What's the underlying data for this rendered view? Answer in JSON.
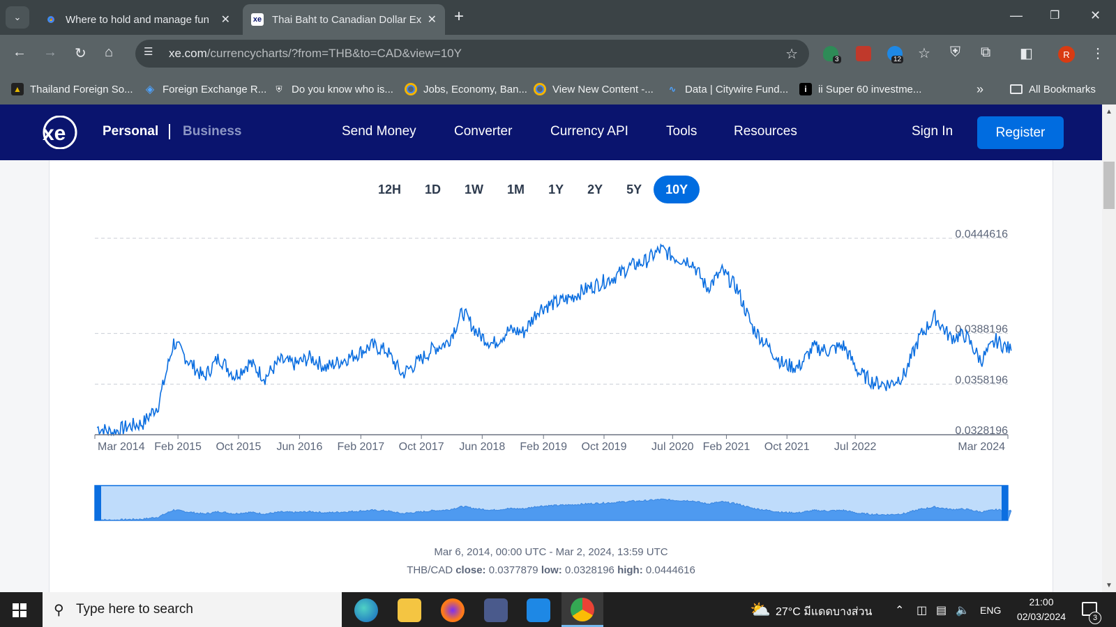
{
  "browser": {
    "tab_menu_icon": "chevron-down-icon",
    "tabs": [
      {
        "title": "Where to hold and manage fun",
        "favicon": "chrome-color-icon",
        "active": false
      },
      {
        "title": "Thai Baht to Canadian Dollar Ex",
        "favicon": "xe-icon",
        "active": true
      }
    ],
    "url_host": "xe.com",
    "url_path": "/currencycharts/?from=THB&to=CAD&view=10Y",
    "extension_badges": [
      "3",
      "12"
    ],
    "profile_initial": "R",
    "bookmarks": [
      {
        "label": "Thailand Foreign So...",
        "icon": "site-icon"
      },
      {
        "label": "Foreign Exchange R...",
        "icon": "diamond-icon"
      },
      {
        "label": "Do you know who is...",
        "icon": "shield-icon"
      },
      {
        "label": "Jobs, Economy, Ban...",
        "icon": "ring-icon"
      },
      {
        "label": "View New Content -...",
        "icon": "ring-icon"
      },
      {
        "label": "Data | Citywire Fund...",
        "icon": "chart-icon"
      },
      {
        "label": "ii Super 60 investme...",
        "icon": "ii-icon"
      }
    ],
    "all_bookmarks_label": "All Bookmarks"
  },
  "xe_nav": {
    "logo_text": "xe",
    "personal": "Personal",
    "business": "Business",
    "links": [
      "Send Money",
      "Converter",
      "Currency API",
      "Tools",
      "Resources"
    ],
    "sign_in": "Sign In",
    "register": "Register"
  },
  "range_tabs": [
    "12H",
    "1D",
    "1W",
    "1M",
    "1Y",
    "2Y",
    "5Y",
    "10Y"
  ],
  "active_range": "10Y",
  "chart_data": {
    "type": "line",
    "title": "",
    "xlabel": "",
    "ylabel": "",
    "y_ticks": [
      "0.0444616",
      "0.0388196",
      "0.0358196",
      "0.0328196"
    ],
    "x_ticks": [
      "Mar 2014",
      "Feb 2015",
      "Oct 2015",
      "Jun 2016",
      "Feb 2017",
      "Oct 2017",
      "Jun 2018",
      "Feb 2019",
      "Oct 2019",
      "Jul 2020",
      "Feb 2021",
      "Oct 2021",
      "Jul 2022",
      "Mar 2024"
    ],
    "ylim": [
      0.0328196,
      0.0444616
    ],
    "grid": "dashed horizontal at y ticks",
    "color": "#0b6ee0",
    "series": [
      {
        "x": [
          "2014-03",
          "2014-05",
          "2014-07",
          "2014-09",
          "2014-11",
          "2015-01",
          "2015-03",
          "2015-05",
          "2015-07",
          "2015-09",
          "2015-11",
          "2016-01",
          "2016-03",
          "2016-05",
          "2016-07",
          "2016-09",
          "2016-11",
          "2017-01",
          "2017-03",
          "2017-05",
          "2017-07",
          "2017-09",
          "2017-11",
          "2018-01",
          "2018-03",
          "2018-05",
          "2018-07",
          "2018-09",
          "2018-11",
          "2019-01",
          "2019-03",
          "2019-05",
          "2019-07",
          "2019-09",
          "2019-11",
          "2020-01",
          "2020-03",
          "2020-05",
          "2020-07",
          "2020-09",
          "2020-11",
          "2021-01",
          "2021-03",
          "2021-05",
          "2021-07",
          "2021-09",
          "2021-11",
          "2022-01",
          "2022-03",
          "2022-05",
          "2022-07",
          "2022-09",
          "2022-11",
          "2023-01",
          "2023-03",
          "2023-05",
          "2023-07",
          "2023-09",
          "2023-11",
          "2024-01",
          "2024-03"
        ],
        "values": [
          0.03325,
          0.03295,
          0.0333,
          0.0335,
          0.0346,
          0.0383,
          0.0372,
          0.0362,
          0.0374,
          0.0363,
          0.0371,
          0.0362,
          0.0372,
          0.037,
          0.0374,
          0.0368,
          0.0372,
          0.0376,
          0.0381,
          0.0378,
          0.0364,
          0.0371,
          0.0379,
          0.0383,
          0.0401,
          0.0388,
          0.0382,
          0.039,
          0.0389,
          0.0403,
          0.0406,
          0.0409,
          0.0414,
          0.0418,
          0.0422,
          0.0428,
          0.0431,
          0.0438,
          0.0433,
          0.0431,
          0.0415,
          0.0425,
          0.0415,
          0.0392,
          0.0381,
          0.037,
          0.0368,
          0.038,
          0.0378,
          0.0381,
          0.0365,
          0.0359,
          0.0358,
          0.0364,
          0.0386,
          0.0398,
          0.0386,
          0.0387,
          0.0372,
          0.0384,
          0.0378
        ]
      }
    ]
  },
  "info": {
    "date_range": "Mar 6, 2014, 00:00 UTC - Mar 2, 2024, 13:59 UTC",
    "pair": "THB/CAD",
    "close_label": "close:",
    "close": "0.0377879",
    "low_label": "low:",
    "low": "0.0328196",
    "high_label": "high:",
    "high": "0.0444616"
  },
  "taskbar": {
    "search_placeholder": "Type here to search",
    "weather": "27°C มีแดดบางส่วน",
    "language": "ENG",
    "time": "21:00",
    "date": "02/03/2024",
    "notifications": "3"
  }
}
